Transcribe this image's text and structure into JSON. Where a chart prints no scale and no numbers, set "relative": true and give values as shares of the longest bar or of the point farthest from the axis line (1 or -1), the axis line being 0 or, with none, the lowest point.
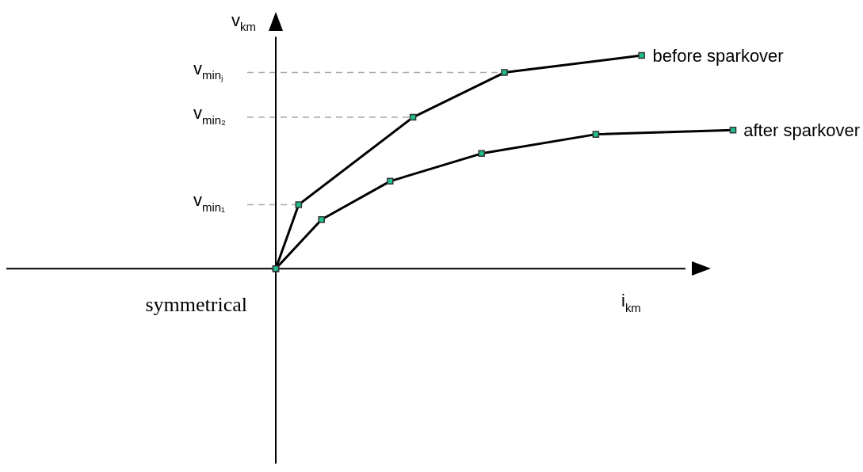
{
  "chart_data": {
    "type": "line",
    "relative": true,
    "xlabel": "i$_{km}$",
    "ylabel": "v$_{km}$",
    "marker": "square",
    "line_style": "solid",
    "categories": [
      null,
      null,
      null,
      null,
      null,
      null,
      null,
      null,
      null,
      null,
      null,
      null,
      null,
      null,
      null,
      null,
      null,
      null,
      null,
      null,
      null
    ],
    "series": [
      {
        "name": "before sparkover",
        "color": "#000000",
        "values": [
          0,
          0.3,
          null,
          null,
          null,
          null,
          0.71,
          null,
          null,
          null,
          0.92,
          null,
          null,
          null,
          null,
          null,
          1.0,
          null,
          null,
          null,
          null
        ]
      },
      {
        "name": "after sparkover",
        "color": "#000000",
        "values": [
          0,
          null,
          0.23,
          null,
          null,
          0.41,
          null,
          null,
          null,
          0.54,
          null,
          null,
          null,
          null,
          0.63,
          null,
          null,
          null,
          null,
          null,
          0.65
        ]
      }
    ],
    "ref_lines": [
      {
        "axis": "y",
        "value": 0.92,
        "label": "v$_{minⱼ}$",
        "color": "#aaaaaa",
        "line_style": "dashed"
      },
      {
        "axis": "y",
        "value": 0.71,
        "label": "v$_{min₂}$",
        "color": "#aaaaaa",
        "line_style": "dashed"
      },
      {
        "axis": "y",
        "value": 0.3,
        "label": "v$_{min₁}$",
        "color": "#aaaaaa",
        "line_style": "dashed"
      }
    ],
    "annotations": [
      "symmetrical"
    ]
  }
}
